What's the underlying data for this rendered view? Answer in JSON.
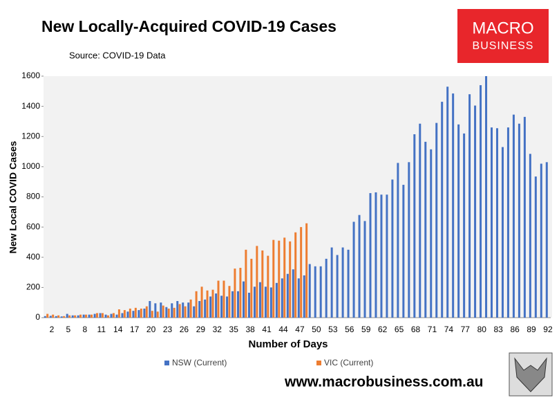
{
  "chart_data": {
    "type": "bar",
    "title": "New Locally-Acquired COVID-19 Cases",
    "subtitle": "Source: COVID-19 Data",
    "y_label": "New Local COVID Cases",
    "x_label": "Number of Days",
    "logo": [
      "MACRO",
      "BUSINESS"
    ],
    "footer": "www.macrobusiness.com.au",
    "categories": [
      null,
      2,
      null,
      null,
      5,
      null,
      null,
      8,
      null,
      null,
      11,
      null,
      null,
      14,
      null,
      null,
      17,
      null,
      null,
      20,
      null,
      null,
      23,
      null,
      null,
      26,
      null,
      null,
      29,
      null,
      null,
      32,
      null,
      null,
      35,
      null,
      null,
      38,
      null,
      null,
      41,
      null,
      null,
      44,
      null,
      null,
      47,
      null,
      null,
      50,
      null,
      null,
      53,
      null,
      null,
      56,
      null,
      null,
      59,
      null,
      null,
      62,
      null,
      null,
      65,
      null,
      null,
      68,
      null,
      null,
      71,
      null,
      null,
      74,
      null,
      null,
      77,
      null,
      null,
      80,
      null,
      null,
      83,
      null,
      null,
      86,
      null,
      null,
      89,
      null,
      null,
      92
    ],
    "series": [
      {
        "name": "NSW (Current)",
        "color": "#4472c4",
        "values": [
          10,
          12,
          10,
          8,
          25,
          15,
          15,
          20,
          20,
          25,
          30,
          20,
          25,
          20,
          30,
          40,
          45,
          50,
          60,
          110,
          95,
          100,
          70,
          95,
          110,
          100,
          100,
          75,
          110,
          120,
          140,
          160,
          145,
          140,
          175,
          175,
          240,
          165,
          205,
          235,
          205,
          200,
          230,
          260,
          290,
          320,
          260,
          280,
          355,
          340,
          340,
          390,
          465,
          415,
          465,
          450,
          635,
          680,
          640,
          825,
          830,
          815,
          815,
          915,
          1025,
          880,
          1030,
          1215,
          1285,
          1165,
          1115,
          1290,
          1430,
          1530,
          1485,
          1280,
          1220,
          1480,
          1405,
          1540,
          1600,
          1260,
          1255,
          1130,
          1260,
          1345,
          1285,
          1330,
          1085,
          935,
          1020,
          1030
        ]
      },
      {
        "name": "VIC (Current)",
        "color": "#ed7d31",
        "values": [
          25,
          20,
          15,
          10,
          15,
          15,
          20,
          20,
          20,
          30,
          30,
          15,
          30,
          55,
          50,
          60,
          65,
          60,
          75,
          45,
          40,
          80,
          60,
          65,
          90,
          75,
          120,
          175,
          205,
          180,
          185,
          245,
          245,
          210,
          325,
          330,
          450,
          390,
          475,
          445,
          410,
          515,
          510,
          530,
          505,
          565,
          600,
          625,
          null,
          null,
          null,
          null,
          null,
          null,
          null,
          null,
          null,
          null,
          null,
          null,
          null,
          null,
          null,
          null,
          null,
          null,
          null,
          null,
          null,
          null,
          null,
          null,
          null,
          null,
          null,
          null,
          null,
          null,
          null,
          null,
          null,
          null,
          null,
          null,
          null,
          null,
          null,
          null,
          null,
          null,
          null,
          null
        ]
      }
    ],
    "ylim": [
      0,
      1600
    ],
    "yticks": [
      0,
      200,
      400,
      600,
      800,
      1000,
      1200,
      1400,
      1600
    ]
  }
}
